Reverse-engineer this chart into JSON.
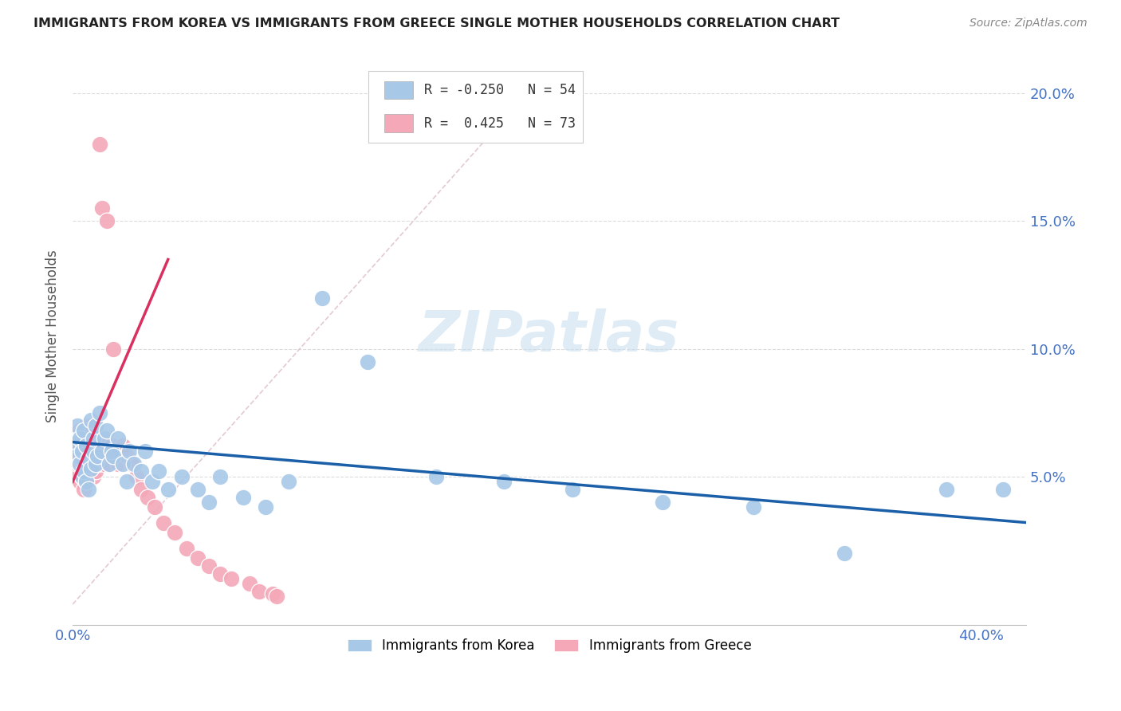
{
  "title": "IMMIGRANTS FROM KOREA VS IMMIGRANTS FROM GREECE SINGLE MOTHER HOUSEHOLDS CORRELATION CHART",
  "source": "Source: ZipAtlas.com",
  "ylabel": "Single Mother Households",
  "korea_color": "#a8c8e8",
  "greece_color": "#f4a8b8",
  "korea_line_color": "#1a5fa8",
  "greece_line_color": "#d93060",
  "korea_R": -0.25,
  "korea_N": 54,
  "greece_R": 0.425,
  "greece_N": 73,
  "xmin": 0.0,
  "xmax": 0.42,
  "ymin": -0.008,
  "ymax": 0.218,
  "watermark_text": "ZIPatlas",
  "background_color": "#ffffff",
  "grid_color": "#d8d8d8",
  "korea_scatter_x": [
    0.001,
    0.002,
    0.002,
    0.003,
    0.003,
    0.004,
    0.004,
    0.005,
    0.005,
    0.006,
    0.006,
    0.007,
    0.007,
    0.008,
    0.008,
    0.009,
    0.009,
    0.01,
    0.01,
    0.011,
    0.012,
    0.013,
    0.014,
    0.015,
    0.016,
    0.017,
    0.018,
    0.02,
    0.022,
    0.024,
    0.025,
    0.027,
    0.03,
    0.032,
    0.035,
    0.038,
    0.042,
    0.048,
    0.055,
    0.06,
    0.065,
    0.075,
    0.085,
    0.095,
    0.11,
    0.13,
    0.16,
    0.19,
    0.22,
    0.26,
    0.3,
    0.34,
    0.385,
    0.41
  ],
  "korea_scatter_y": [
    0.063,
    0.058,
    0.07,
    0.055,
    0.065,
    0.05,
    0.06,
    0.052,
    0.068,
    0.048,
    0.062,
    0.045,
    0.057,
    0.072,
    0.053,
    0.06,
    0.065,
    0.055,
    0.07,
    0.058,
    0.075,
    0.06,
    0.065,
    0.068,
    0.055,
    0.06,
    0.058,
    0.065,
    0.055,
    0.048,
    0.06,
    0.055,
    0.052,
    0.06,
    0.048,
    0.052,
    0.045,
    0.05,
    0.045,
    0.04,
    0.05,
    0.042,
    0.038,
    0.048,
    0.12,
    0.095,
    0.05,
    0.048,
    0.045,
    0.04,
    0.038,
    0.02,
    0.045,
    0.045
  ],
  "greece_scatter_x": [
    0.001,
    0.001,
    0.001,
    0.002,
    0.002,
    0.002,
    0.002,
    0.003,
    0.003,
    0.003,
    0.003,
    0.003,
    0.004,
    0.004,
    0.004,
    0.004,
    0.005,
    0.005,
    0.005,
    0.005,
    0.005,
    0.006,
    0.006,
    0.006,
    0.006,
    0.007,
    0.007,
    0.007,
    0.007,
    0.008,
    0.008,
    0.008,
    0.008,
    0.009,
    0.009,
    0.009,
    0.01,
    0.01,
    0.01,
    0.011,
    0.011,
    0.012,
    0.012,
    0.013,
    0.013,
    0.014,
    0.014,
    0.015,
    0.015,
    0.016,
    0.017,
    0.018,
    0.019,
    0.02,
    0.021,
    0.022,
    0.024,
    0.026,
    0.028,
    0.03,
    0.033,
    0.036,
    0.04,
    0.045,
    0.05,
    0.055,
    0.06,
    0.065,
    0.07,
    0.078,
    0.082,
    0.088,
    0.09
  ],
  "greece_scatter_y": [
    0.058,
    0.062,
    0.055,
    0.05,
    0.06,
    0.065,
    0.055,
    0.048,
    0.055,
    0.062,
    0.058,
    0.068,
    0.05,
    0.055,
    0.06,
    0.065,
    0.045,
    0.052,
    0.06,
    0.065,
    0.055,
    0.048,
    0.055,
    0.06,
    0.07,
    0.05,
    0.055,
    0.065,
    0.058,
    0.052,
    0.058,
    0.062,
    0.07,
    0.05,
    0.055,
    0.06,
    0.052,
    0.058,
    0.065,
    0.055,
    0.06,
    0.18,
    0.062,
    0.155,
    0.058,
    0.055,
    0.062,
    0.06,
    0.15,
    0.055,
    0.062,
    0.1,
    0.058,
    0.055,
    0.06,
    0.062,
    0.058,
    0.055,
    0.05,
    0.045,
    0.042,
    0.038,
    0.032,
    0.028,
    0.022,
    0.018,
    0.015,
    0.012,
    0.01,
    0.008,
    0.005,
    0.004,
    0.003
  ],
  "korea_line_x": [
    0.0,
    0.42
  ],
  "korea_line_y": [
    0.0635,
    0.032
  ],
  "greece_line_x": [
    0.0,
    0.042
  ],
  "greece_line_y": [
    0.048,
    0.135
  ],
  "diag_line_x": [
    0.0,
    0.2
  ],
  "diag_line_y": [
    0.0,
    0.2
  ]
}
